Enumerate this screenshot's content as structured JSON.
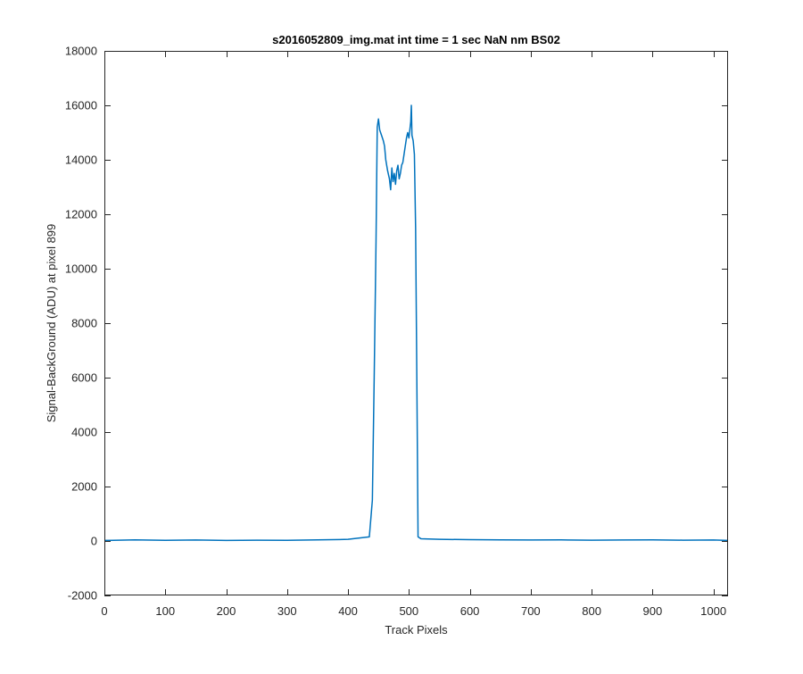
{
  "chart_data": {
    "type": "line",
    "title": "s2016052809_img.mat int time = 1 sec  NaN nm BS02",
    "xlabel": "Track Pixels",
    "ylabel": "Signal-BackGround (ADU) at pixel 899",
    "xlim": [
      0,
      1024
    ],
    "ylim": [
      -2000,
      18000
    ],
    "xticks": [
      0,
      100,
      200,
      300,
      400,
      500,
      600,
      700,
      800,
      900,
      1000
    ],
    "yticks": [
      -2000,
      0,
      2000,
      4000,
      6000,
      8000,
      10000,
      12000,
      14000,
      16000,
      18000
    ],
    "grid": false,
    "box": true,
    "line_color": "#0072BD",
    "series": [
      {
        "x": [
          0,
          50,
          100,
          150,
          200,
          250,
          300,
          350,
          400,
          435,
          440,
          443,
          446,
          448,
          450,
          452,
          455,
          458,
          460,
          462,
          465,
          468,
          470,
          472,
          474,
          476,
          478,
          480,
          482,
          484,
          486,
          488,
          490,
          492,
          494,
          496,
          498,
          500,
          502,
          503,
          504,
          505,
          507,
          509,
          511,
          513,
          515,
          520,
          550,
          600,
          650,
          700,
          750,
          800,
          850,
          900,
          950,
          1000,
          1024
        ],
        "y": [
          20,
          40,
          25,
          35,
          20,
          30,
          25,
          40,
          60,
          150,
          1500,
          6000,
          11000,
          15200,
          15500,
          15100,
          14900,
          14700,
          14500,
          14000,
          13600,
          13300,
          12900,
          13700,
          13200,
          13500,
          13100,
          13600,
          13800,
          13300,
          13500,
          13800,
          13900,
          14200,
          14500,
          14800,
          15000,
          14800,
          15200,
          15400,
          16000,
          14900,
          14700,
          14200,
          11500,
          6000,
          150,
          80,
          60,
          50,
          40,
          35,
          40,
          30,
          35,
          40,
          30,
          35,
          20
        ]
      }
    ]
  }
}
